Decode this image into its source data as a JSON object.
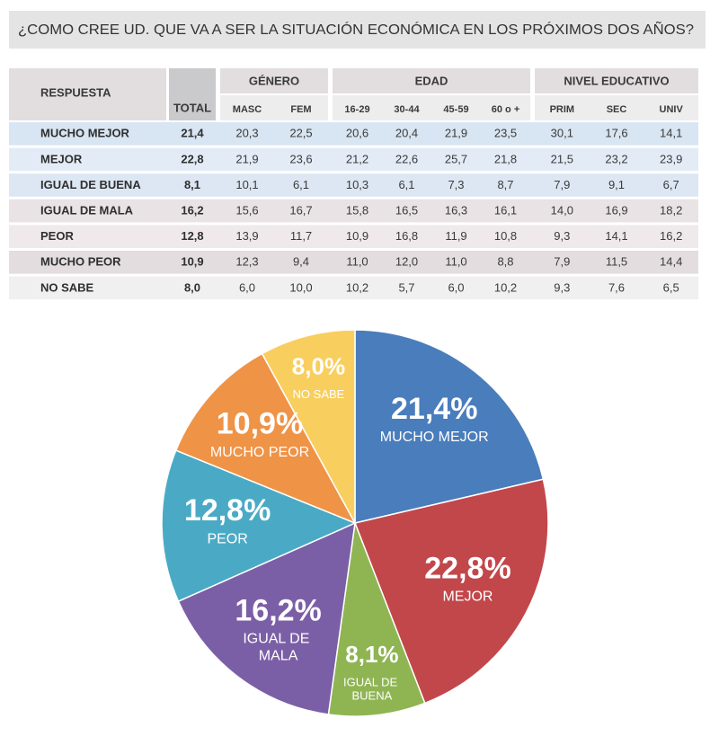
{
  "title": "¿COMO CREE UD. QUE VA A SER LA SITUACIÓN ECONÓMICA EN LOS PRÓXIMOS DOS AÑOS?",
  "table": {
    "header": {
      "respuesta": "RESPUESTA",
      "total": "TOTAL",
      "groups": [
        {
          "label": "GÉNERO",
          "columns": [
            "MASC",
            "FEM"
          ]
        },
        {
          "label": "EDAD",
          "columns": [
            "16-29",
            "30-44",
            "45-59",
            "60 o +"
          ]
        },
        {
          "label": "NIVEL EDUCATIVO",
          "columns": [
            "PRIM",
            "SEC",
            "UNIV"
          ]
        }
      ]
    },
    "rows": [
      [
        "MUCHO MEJOR",
        "21,4",
        "20,3",
        "22,5",
        "20,6",
        "20,4",
        "21,9",
        "23,5",
        "30,1",
        "17,6",
        "14,1"
      ],
      [
        "MEJOR",
        "22,8",
        "21,9",
        "23,6",
        "21,2",
        "22,6",
        "25,7",
        "21,8",
        "21,5",
        "23,2",
        "23,9"
      ],
      [
        "IGUAL DE BUENA",
        "8,1",
        "10,1",
        "6,1",
        "10,3",
        "6,1",
        "7,3",
        "8,7",
        "7,9",
        "9,1",
        "6,7"
      ],
      [
        "IGUAL DE MALA",
        "16,2",
        "15,6",
        "16,7",
        "15,8",
        "16,5",
        "16,3",
        "16,1",
        "14,0",
        "16,9",
        "18,2"
      ],
      [
        "PEOR",
        "12,8",
        "13,9",
        "11,7",
        "10,9",
        "16,8",
        "11,9",
        "10,8",
        "9,3",
        "14,1",
        "16,2"
      ],
      [
        "MUCHO PEOR",
        "10,9",
        "12,3",
        "9,4",
        "11,0",
        "12,0",
        "11,0",
        "8,8",
        "7,9",
        "11,5",
        "14,4"
      ],
      [
        "NO SABE",
        "8,0",
        "6,0",
        "10,0",
        "10,2",
        "5,7",
        "6,0",
        "10,2",
        "9,3",
        "7,6",
        "6,5"
      ]
    ]
  },
  "chart_data": {
    "type": "pie",
    "categories": [
      "MUCHO MEJOR",
      "MEJOR",
      "IGUAL DE BUENA",
      "IGUAL DE MALA",
      "PEOR",
      "MUCHO PEOR",
      "NO SABE"
    ],
    "values": [
      21.4,
      22.8,
      8.1,
      16.2,
      12.8,
      10.9,
      8.0
    ],
    "value_labels": [
      "21,4%",
      "22,8%",
      "8,1%",
      "16,2%",
      "12,8%",
      "10,9%",
      "8,0%"
    ],
    "colors": [
      "#4a7dbc",
      "#c2474b",
      "#8fb553",
      "#7b5fa6",
      "#4aaac5",
      "#ef9347",
      "#f8cf5f"
    ]
  }
}
